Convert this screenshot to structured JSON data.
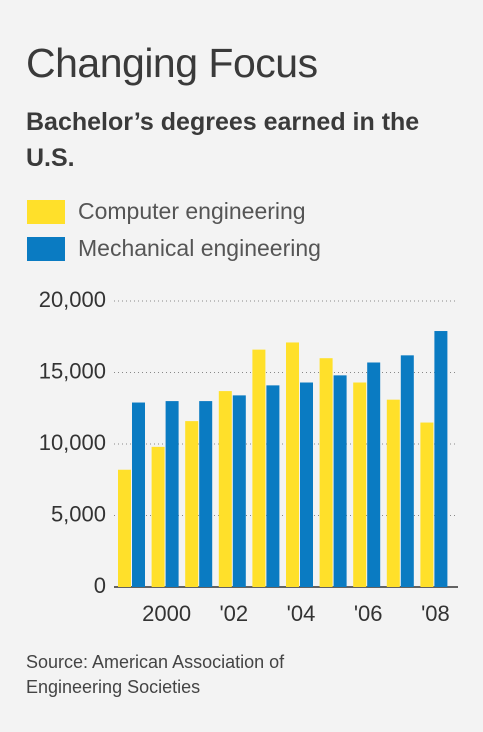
{
  "chart_data": {
    "type": "bar",
    "title": "Changing Focus",
    "subtitle": "Bachelor’s degrees earned in the U.S.",
    "source": "Source: American Association of Engineering Societies",
    "categories": [
      null,
      "2000",
      null,
      "'02",
      null,
      "'04",
      null,
      "'06",
      null,
      "'08"
    ],
    "series": [
      {
        "name": "Computer engineering",
        "color": "#ffe02a",
        "values": [
          8200,
          9800,
          11600,
          13700,
          16600,
          17100,
          16000,
          14300,
          13100,
          11500
        ]
      },
      {
        "name": "Mechanical engineering",
        "color": "#0a7bc2",
        "values": [
          12900,
          13000,
          13000,
          13400,
          14100,
          14300,
          14800,
          15700,
          16200,
          17900
        ]
      }
    ],
    "ylim": [
      0,
      20000
    ],
    "yticks": [
      0,
      {
        "value": 5000,
        "label": "5,000"
      },
      {
        "value": 10000,
        "label": "10,000"
      },
      {
        "value": 15000,
        "label": "15,000"
      },
      {
        "value": 20000,
        "label": "20,000"
      }
    ],
    "grid": true
  }
}
